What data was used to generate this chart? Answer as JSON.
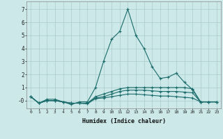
{
  "xlabel": "Humidex (Indice chaleur)",
  "bg_color": "#cce8e8",
  "grid_color": "#aacccc",
  "line_color": "#1a6b6b",
  "xlim": [
    -0.5,
    23.5
  ],
  "ylim": [
    -0.6,
    7.6
  ],
  "xticks": [
    0,
    1,
    2,
    3,
    4,
    5,
    6,
    7,
    8,
    9,
    10,
    11,
    12,
    13,
    14,
    15,
    16,
    17,
    18,
    19,
    20,
    21,
    22,
    23
  ],
  "yticks": [
    0,
    1,
    2,
    3,
    4,
    5,
    6,
    7
  ],
  "ytick_labels": [
    "-0",
    "1",
    "2",
    "3",
    "4",
    "5",
    "6",
    "7"
  ],
  "series": [
    {
      "x": [
        0,
        1,
        2,
        3,
        4,
        5,
        6,
        7,
        8,
        9,
        10,
        11,
        12,
        13,
        14,
        15,
        16,
        17,
        18,
        19,
        20,
        21,
        22,
        23
      ],
      "y": [
        0.3,
        -0.2,
        0.1,
        0.1,
        -0.1,
        -0.3,
        -0.1,
        -0.1,
        1.0,
        3.0,
        4.7,
        5.3,
        7.0,
        5.0,
        4.0,
        2.6,
        1.7,
        1.8,
        2.1,
        1.4,
        0.85,
        -0.1,
        -0.1,
        -0.1
      ]
    },
    {
      "x": [
        0,
        1,
        2,
        3,
        4,
        5,
        6,
        7,
        8,
        9,
        10,
        11,
        12,
        13,
        14,
        15,
        16,
        17,
        18,
        19,
        20,
        21,
        22,
        23
      ],
      "y": [
        0.3,
        -0.2,
        0.0,
        0.0,
        -0.1,
        -0.2,
        -0.2,
        -0.2,
        0.3,
        0.5,
        0.7,
        0.9,
        1.0,
        1.0,
        1.0,
        1.0,
        1.0,
        1.0,
        1.0,
        1.0,
        0.9,
        -0.1,
        -0.1,
        -0.1
      ]
    },
    {
      "x": [
        0,
        1,
        2,
        3,
        4,
        5,
        6,
        7,
        8,
        9,
        10,
        11,
        12,
        13,
        14,
        15,
        16,
        17,
        18,
        19,
        20,
        21,
        22,
        23
      ],
      "y": [
        0.3,
        -0.2,
        0.0,
        0.0,
        -0.1,
        -0.2,
        -0.2,
        -0.2,
        0.2,
        0.3,
        0.5,
        0.7,
        0.8,
        0.8,
        0.8,
        0.75,
        0.7,
        0.7,
        0.7,
        0.65,
        0.6,
        -0.1,
        -0.1,
        -0.1
      ]
    },
    {
      "x": [
        0,
        1,
        2,
        3,
        4,
        5,
        6,
        7,
        8,
        9,
        10,
        11,
        12,
        13,
        14,
        15,
        16,
        17,
        18,
        19,
        20,
        21,
        22,
        23
      ],
      "y": [
        0.3,
        -0.2,
        0.0,
        0.0,
        -0.1,
        -0.2,
        -0.2,
        -0.25,
        0.15,
        0.2,
        0.3,
        0.4,
        0.5,
        0.5,
        0.45,
        0.4,
        0.35,
        0.35,
        0.3,
        0.25,
        0.2,
        -0.1,
        -0.1,
        -0.1
      ]
    }
  ]
}
